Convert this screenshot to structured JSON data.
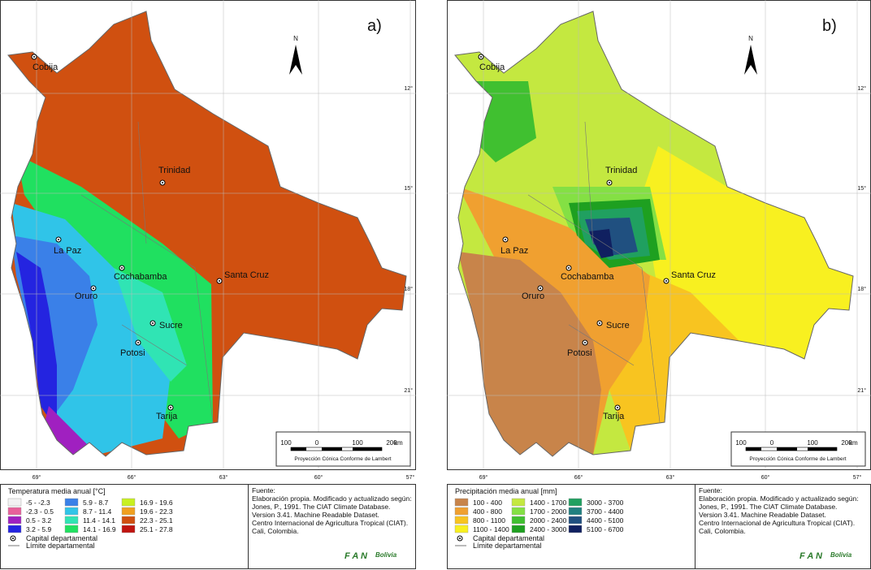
{
  "panels": [
    {
      "label": "a)",
      "legend_title": "Temperatura media anual [°C]",
      "legend_items": [
        {
          "label": "-5 - -2.3",
          "color": "#f2f2f2"
        },
        {
          "label": "-2.3 - 0.5",
          "color": "#e8609a"
        },
        {
          "label": "0.5 - 3.2",
          "color": "#a020c0"
        },
        {
          "label": "3.2 - 5.9",
          "color": "#2424e0"
        },
        {
          "label": "5.9 - 8.7",
          "color": "#3a80e8"
        },
        {
          "label": "8.7 - 11.4",
          "color": "#30c4e8"
        },
        {
          "label": "11.4 - 14.1",
          "color": "#30e4b4"
        },
        {
          "label": "14.1 - 16.9",
          "color": "#20e060"
        },
        {
          "label": "16.9 - 19.6",
          "color": "#c8f020"
        },
        {
          "label": "19.6 - 22.3",
          "color": "#f0a020"
        },
        {
          "label": "22.3 - 25.1",
          "color": "#d05010"
        },
        {
          "label": "25.1 - 27.8",
          "color": "#c01410"
        }
      ]
    },
    {
      "label": "b)",
      "legend_title": "Precipitación media anual [mm]",
      "legend_items": [
        {
          "label": "100 - 400",
          "color": "#c8844a"
        },
        {
          "label": "400 - 800",
          "color": "#f0a030"
        },
        {
          "label": "800 - 1100",
          "color": "#f8c420"
        },
        {
          "label": "1100 - 1400",
          "color": "#f8f020"
        },
        {
          "label": "1400 - 1700",
          "color": "#c4e840"
        },
        {
          "label": "1700 - 2000",
          "color": "#84e044"
        },
        {
          "label": "2000 - 2400",
          "color": "#40c030"
        },
        {
          "label": "2400 - 3000",
          "color": "#1ea020"
        },
        {
          "label": "3000 - 3700",
          "color": "#20a060"
        },
        {
          "label": "3700 - 4400",
          "color": "#208080"
        },
        {
          "label": "4400 - 5100",
          "color": "#205080"
        },
        {
          "label": "5100 - 6700",
          "color": "#102060"
        }
      ]
    }
  ],
  "cities": [
    "Cobija",
    "Trinidad",
    "La Paz",
    "Cochabamba",
    "Oruro",
    "Santa Cruz",
    "Sucre",
    "Potosi",
    "Tarija"
  ],
  "north": "N",
  "lat_labels": [
    "12°",
    "15°",
    "18°",
    "21°"
  ],
  "lon_labels": [
    "69°",
    "66°",
    "63°",
    "60°",
    "57°"
  ],
  "scale": {
    "ticks": [
      "100",
      "0",
      "100",
      "200"
    ],
    "unit": "km",
    "projection": "Proyección Cónica Conforme de Lambert"
  },
  "legend_symbols": {
    "capital": "Capital departamental",
    "boundary": "Límite departamental"
  },
  "source": [
    "Fuente:",
    "Elaboración propia. Modificado y actualizado según:",
    "Jones, P., 1991. The CIAT Climate Database.",
    "Version 3.41. Machine Readable Dataset.",
    "Centro Internacional de Agricultura Tropical (CIAT).",
    "Cali, Colombia."
  ],
  "logo": {
    "mark": "F A N",
    "name": "Bolivia"
  }
}
